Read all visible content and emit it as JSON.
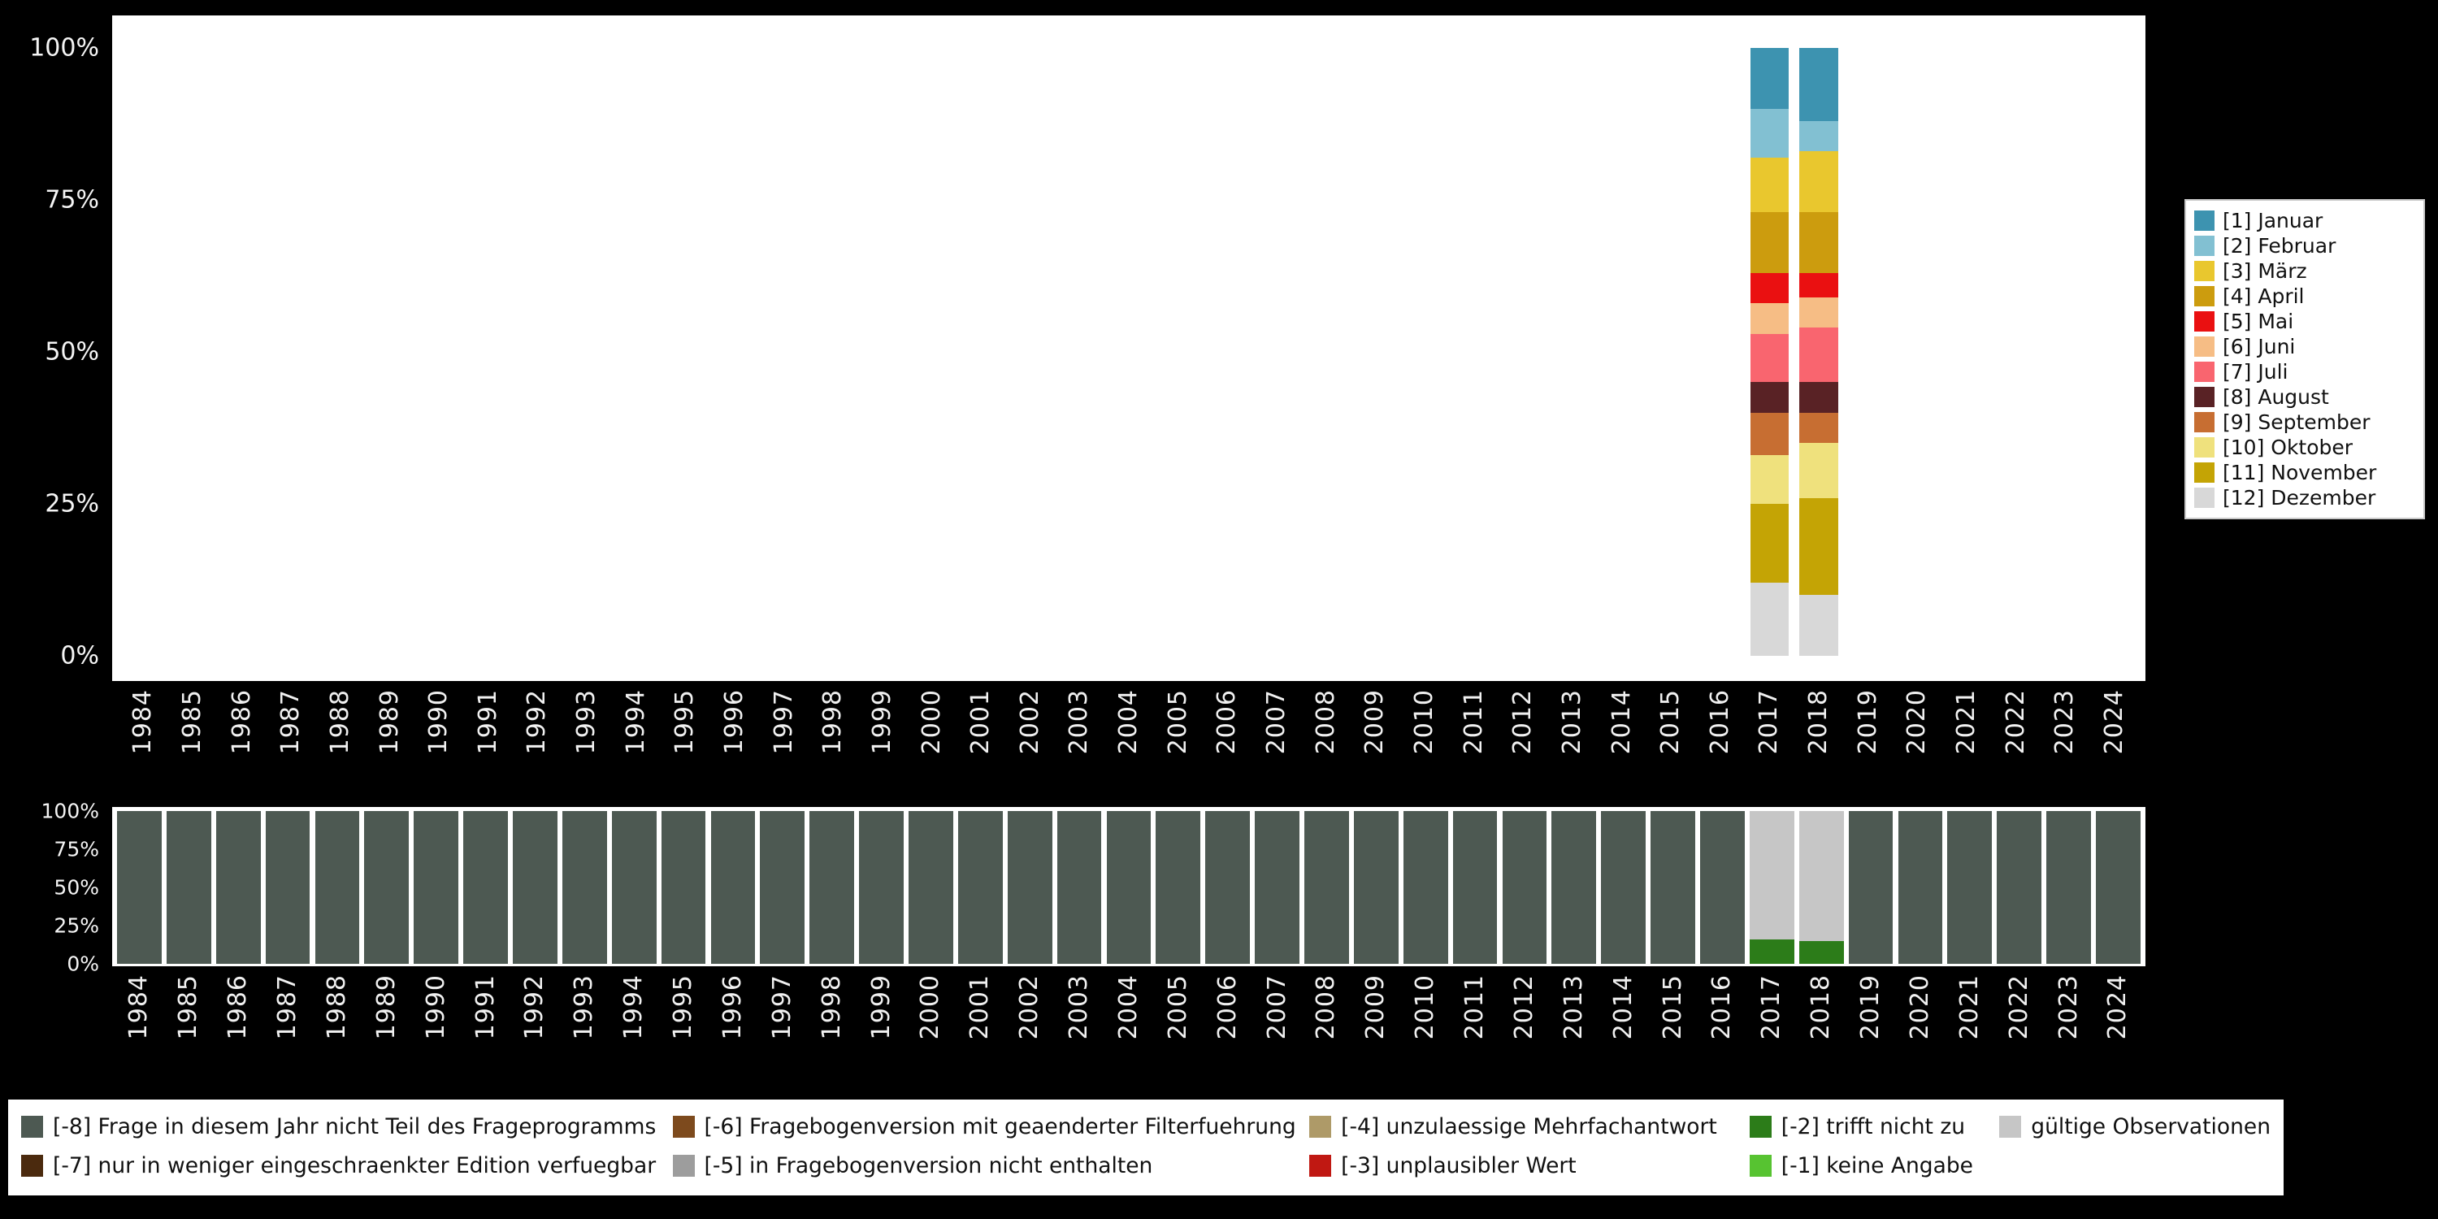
{
  "page": {
    "background": "#000000",
    "plot_background": "#ffffff",
    "axis_text_color": "#f0f0f0"
  },
  "chart_data": [
    {
      "id": "months",
      "type": "bar",
      "stacked": true,
      "title": "",
      "xlabel": "",
      "ylabel": "",
      "ylim": [
        0,
        100
      ],
      "grid": false,
      "legend_position": "right",
      "x": [
        "1984",
        "1985",
        "1986",
        "1987",
        "1988",
        "1989",
        "1990",
        "1991",
        "1992",
        "1993",
        "1994",
        "1995",
        "1996",
        "1997",
        "1998",
        "1999",
        "2000",
        "2001",
        "2002",
        "2003",
        "2004",
        "2005",
        "2006",
        "2007",
        "2008",
        "2009",
        "2010",
        "2011",
        "2012",
        "2013",
        "2014",
        "2015",
        "2016",
        "2017",
        "2018",
        "2019",
        "2020",
        "2021",
        "2022",
        "2023",
        "2024"
      ],
      "y_ticks": [
        {
          "label": "100%",
          "value": 100
        },
        {
          "label": "75%",
          "value": 75
        },
        {
          "label": "50%",
          "value": 50
        },
        {
          "label": "25%",
          "value": 25
        },
        {
          "label": "0%",
          "value": 0
        }
      ],
      "series": [
        {
          "name": "[1] Januar",
          "color": "#3d93b0"
        },
        {
          "name": "[2] Februar",
          "color": "#82c0d2"
        },
        {
          "name": "[3] März",
          "color": "#e9c72e"
        },
        {
          "name": "[4] April",
          "color": "#cc9c0e"
        },
        {
          "name": "[5] Mai",
          "color": "#ea1011"
        },
        {
          "name": "[6] Juni",
          "color": "#f6bd85"
        },
        {
          "name": "[7] Juli",
          "color": "#f9656f"
        },
        {
          "name": "[8] August",
          "color": "#592225"
        },
        {
          "name": "[9] September",
          "color": "#c76e32"
        },
        {
          "name": "[10] Oktober",
          "color": "#efe17d"
        },
        {
          "name": "[11] November",
          "color": "#c4a405"
        },
        {
          "name": "[12] Dezember",
          "color": "#d8d8d8"
        }
      ],
      "default_bar": [],
      "bars": {
        "2017": [
          {
            "series": "[12] Dezember",
            "value": 12
          },
          {
            "series": "[11] November",
            "value": 13
          },
          {
            "series": "[10] Oktober",
            "value": 8
          },
          {
            "series": "[9] September",
            "value": 7
          },
          {
            "series": "[8] August",
            "value": 5
          },
          {
            "series": "[7] Juli",
            "value": 8
          },
          {
            "series": "[6] Juni",
            "value": 5
          },
          {
            "series": "[5] Mai",
            "value": 5
          },
          {
            "series": "[4] April",
            "value": 10
          },
          {
            "series": "[3] März",
            "value": 9
          },
          {
            "series": "[2] Februar",
            "value": 8
          },
          {
            "series": "[1] Januar",
            "value": 10
          }
        ],
        "2018": [
          {
            "series": "[12] Dezember",
            "value": 10
          },
          {
            "series": "[11] November",
            "value": 16
          },
          {
            "series": "[10] Oktober",
            "value": 9
          },
          {
            "series": "[9] September",
            "value": 5
          },
          {
            "series": "[8] August",
            "value": 5
          },
          {
            "series": "[7] Juli",
            "value": 9
          },
          {
            "series": "[6] Juni",
            "value": 5
          },
          {
            "series": "[5] Mai",
            "value": 4
          },
          {
            "series": "[4] April",
            "value": 10
          },
          {
            "series": "[3] März",
            "value": 10
          },
          {
            "series": "[2] Februar",
            "value": 5
          },
          {
            "series": "[1] Januar",
            "value": 12
          }
        ]
      }
    },
    {
      "id": "missings",
      "type": "bar",
      "stacked": true,
      "title": "",
      "xlabel": "",
      "ylabel": "",
      "ylim": [
        0,
        100
      ],
      "grid": false,
      "legend_position": "bottom",
      "x": [
        "1984",
        "1985",
        "1986",
        "1987",
        "1988",
        "1989",
        "1990",
        "1991",
        "1992",
        "1993",
        "1994",
        "1995",
        "1996",
        "1997",
        "1998",
        "1999",
        "2000",
        "2001",
        "2002",
        "2003",
        "2004",
        "2005",
        "2006",
        "2007",
        "2008",
        "2009",
        "2010",
        "2011",
        "2012",
        "2013",
        "2014",
        "2015",
        "2016",
        "2017",
        "2018",
        "2019",
        "2020",
        "2021",
        "2022",
        "2023",
        "2024"
      ],
      "y_ticks": [
        {
          "label": "100%",
          "value": 100
        },
        {
          "label": "75%",
          "value": 75
        },
        {
          "label": "50%",
          "value": 50
        },
        {
          "label": "25%",
          "value": 25
        },
        {
          "label": "0%",
          "value": 0
        }
      ],
      "series": [
        {
          "name": "[-8] Frage in diesem Jahr nicht Teil des Frageprogramms",
          "color": "#4d5952"
        },
        {
          "name": "[-7] nur in weniger eingeschraenkter Edition verfuegbar",
          "color": "#4b2a0e"
        },
        {
          "name": "[-6] Fragebogenversion mit geaenderter Filterfuehrung",
          "color": "#7d4a1d"
        },
        {
          "name": "[-5] in Fragebogenversion nicht enthalten",
          "color": "#9d9d9d"
        },
        {
          "name": "[-4] unzulaessige Mehrfachantwort",
          "color": "#ae9a68"
        },
        {
          "name": "[-3] unplausibler Wert",
          "color": "#c01812"
        },
        {
          "name": "[-2] trifft nicht zu",
          "color": "#2c7c19"
        },
        {
          "name": "[-1] keine Angabe",
          "color": "#57c331"
        },
        {
          "name": "gültige Observationen",
          "color": "#c6c6c6"
        }
      ],
      "default_bar": [
        {
          "series": "[-8] Frage in diesem Jahr nicht Teil des Frageprogramms",
          "value": 100
        }
      ],
      "bars": {
        "2017": [
          {
            "series": "[-2] trifft nicht zu",
            "value": 16
          },
          {
            "series": "gültige Observationen",
            "value": 84
          }
        ],
        "2018": [
          {
            "series": "[-2] trifft nicht zu",
            "value": 15
          },
          {
            "series": "gültige Observationen",
            "value": 85
          }
        ]
      }
    }
  ]
}
